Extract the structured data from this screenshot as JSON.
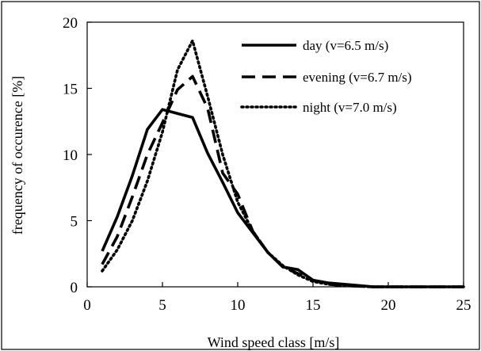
{
  "chart_data": {
    "type": "line",
    "xlabel": "Wind speed class [m/s]",
    "ylabel": "frequency of occurence [%]",
    "xlim": [
      0,
      25
    ],
    "ylim": [
      0,
      20
    ],
    "xticks": [
      0,
      5,
      10,
      15,
      20,
      25
    ],
    "yticks": [
      0,
      5,
      10,
      15,
      20
    ],
    "grid": false,
    "legend_position": "top-right",
    "series": [
      {
        "name": "day (v=6.5 m/s)",
        "style": "solid",
        "color": "#000000",
        "points": [
          {
            "x": 1,
            "y": 2.7
          },
          {
            "x": 2,
            "y": 5.3
          },
          {
            "x": 3,
            "y": 8.4
          },
          {
            "x": 4,
            "y": 11.9
          },
          {
            "x": 5,
            "y": 13.4
          },
          {
            "x": 6,
            "y": 13.1
          },
          {
            "x": 7,
            "y": 12.8
          },
          {
            "x": 8,
            "y": 10.1
          },
          {
            "x": 9,
            "y": 7.9
          },
          {
            "x": 10,
            "y": 5.6
          },
          {
            "x": 11,
            "y": 4.1
          },
          {
            "x": 12,
            "y": 2.6
          },
          {
            "x": 13,
            "y": 1.5
          },
          {
            "x": 14,
            "y": 1.3
          },
          {
            "x": 15,
            "y": 0.5
          },
          {
            "x": 16,
            "y": 0.3
          },
          {
            "x": 17,
            "y": 0.2
          },
          {
            "x": 18,
            "y": 0.1
          },
          {
            "x": 19,
            "y": 0.0
          },
          {
            "x": 25,
            "y": 0.0
          }
        ]
      },
      {
        "name": "evening (v=6.7 m/s)",
        "style": "dashed",
        "color": "#000000",
        "points": [
          {
            "x": 1,
            "y": 1.7
          },
          {
            "x": 2,
            "y": 3.8
          },
          {
            "x": 3,
            "y": 6.8
          },
          {
            "x": 4,
            "y": 10.0
          },
          {
            "x": 5,
            "y": 12.4
          },
          {
            "x": 6,
            "y": 14.9
          },
          {
            "x": 7,
            "y": 15.9
          },
          {
            "x": 8,
            "y": 13.5
          },
          {
            "x": 9,
            "y": 8.6
          },
          {
            "x": 10,
            "y": 7.0
          },
          {
            "x": 11,
            "y": 4.2
          },
          {
            "x": 12,
            "y": 2.6
          },
          {
            "x": 13,
            "y": 1.5
          },
          {
            "x": 14,
            "y": 1.0
          },
          {
            "x": 15,
            "y": 0.5
          },
          {
            "x": 16,
            "y": 0.2
          },
          {
            "x": 17,
            "y": 0.1
          },
          {
            "x": 18,
            "y": 0.05
          },
          {
            "x": 19,
            "y": 0.0
          },
          {
            "x": 25,
            "y": 0.0
          }
        ]
      },
      {
        "name": "night (v=7.0 m/s)",
        "style": "dotted",
        "color": "#000000",
        "points": [
          {
            "x": 1,
            "y": 1.2
          },
          {
            "x": 2,
            "y": 2.8
          },
          {
            "x": 3,
            "y": 5.0
          },
          {
            "x": 4,
            "y": 8.0
          },
          {
            "x": 5,
            "y": 11.7
          },
          {
            "x": 6,
            "y": 16.4
          },
          {
            "x": 7,
            "y": 18.6
          },
          {
            "x": 8,
            "y": 14.4
          },
          {
            "x": 9,
            "y": 10.0
          },
          {
            "x": 10,
            "y": 6.4
          },
          {
            "x": 11,
            "y": 4.2
          },
          {
            "x": 12,
            "y": 2.6
          },
          {
            "x": 13,
            "y": 1.6
          },
          {
            "x": 14,
            "y": 0.9
          },
          {
            "x": 15,
            "y": 0.4
          },
          {
            "x": 16,
            "y": 0.2
          },
          {
            "x": 17,
            "y": 0.1
          },
          {
            "x": 18,
            "y": 0.05
          },
          {
            "x": 19,
            "y": 0.0
          },
          {
            "x": 25,
            "y": 0.0
          }
        ]
      }
    ]
  }
}
